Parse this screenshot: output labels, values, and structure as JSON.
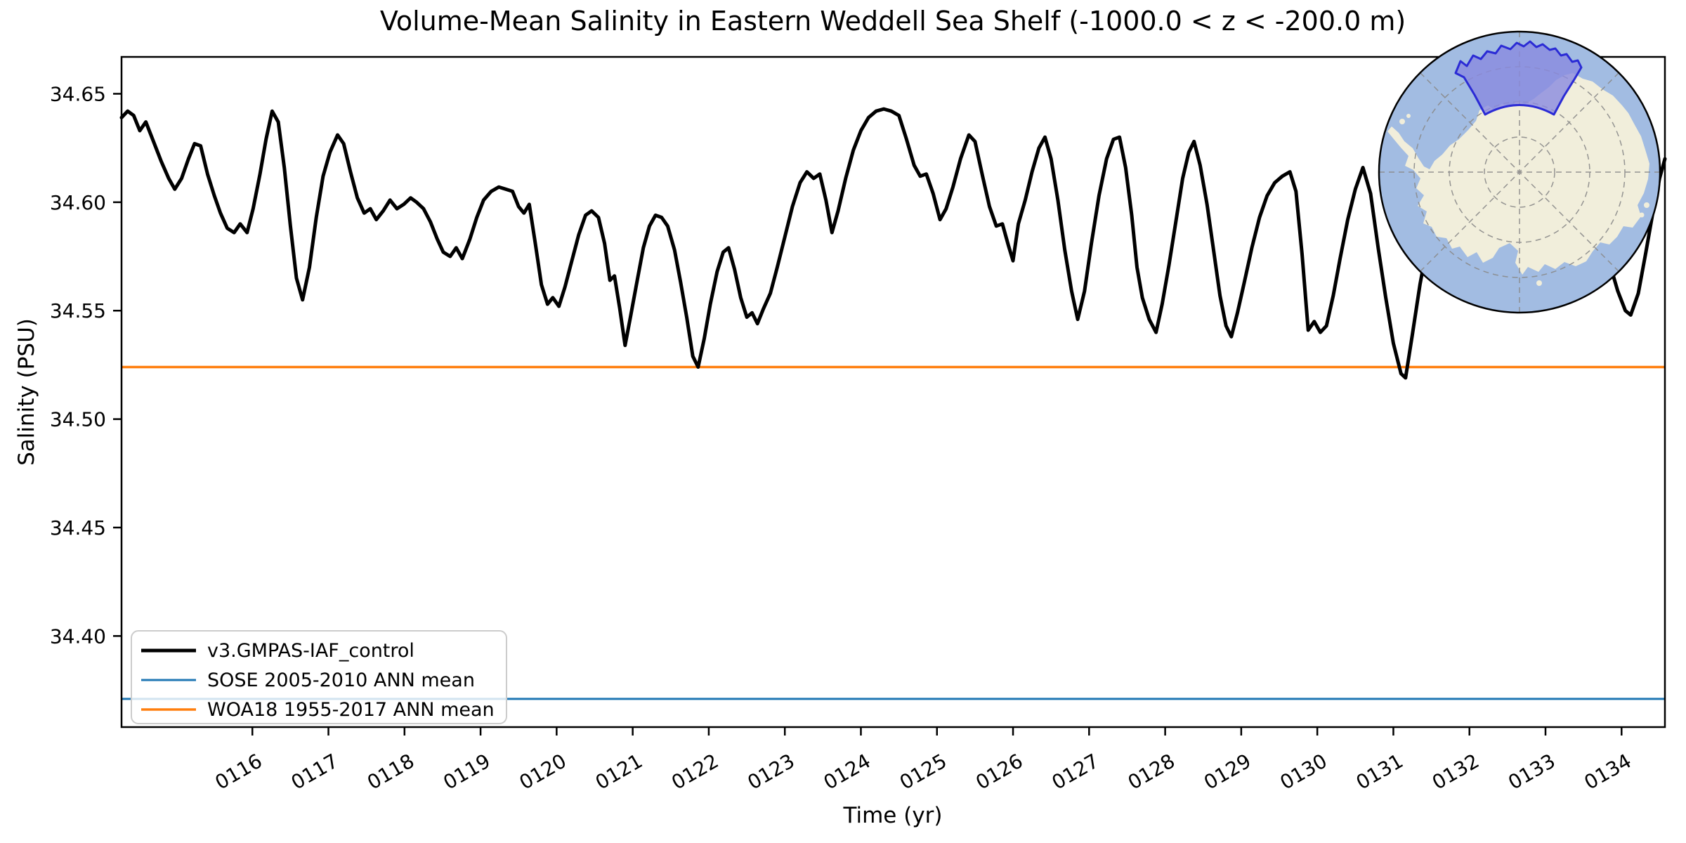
{
  "chart_data": {
    "type": "line",
    "title": "Volume-Mean Salinity in Eastern Weddell Sea Shelf (-1000.0 < z < -200.0 m)",
    "xlabel": "Time (yr)",
    "ylabel": "Salinity (PSU)",
    "xlim": [
      114.28,
      134.57
    ],
    "ylim": [
      34.358,
      34.667
    ],
    "grid": false,
    "legend_position": "lower left",
    "x_ticks": [
      116,
      117,
      118,
      119,
      120,
      121,
      122,
      123,
      124,
      125,
      126,
      127,
      128,
      129,
      130,
      131,
      132,
      133,
      134
    ],
    "x_tick_labels": [
      "0116",
      "0117",
      "0118",
      "0119",
      "0120",
      "0121",
      "0122",
      "0123",
      "0124",
      "0125",
      "0126",
      "0127",
      "0128",
      "0129",
      "0130",
      "0131",
      "0132",
      "0133",
      "0134"
    ],
    "y_ticks": [
      34.65,
      34.6,
      34.55,
      34.5,
      34.45,
      34.4
    ],
    "series": [
      {
        "name": "v3.GMPAS-IAF_control",
        "type": "line",
        "color": "#000000",
        "line_width": 5,
        "points": [
          [
            114.28,
            34.639
          ],
          [
            114.36,
            34.642
          ],
          [
            114.44,
            34.64
          ],
          [
            114.52,
            34.633
          ],
          [
            114.6,
            34.637
          ],
          [
            114.7,
            34.628
          ],
          [
            114.8,
            34.619
          ],
          [
            114.9,
            34.611
          ],
          [
            114.98,
            34.606
          ],
          [
            115.07,
            34.611
          ],
          [
            115.16,
            34.62
          ],
          [
            115.24,
            34.627
          ],
          [
            115.32,
            34.626
          ],
          [
            115.41,
            34.613
          ],
          [
            115.5,
            34.603
          ],
          [
            115.58,
            34.595
          ],
          [
            115.67,
            34.588
          ],
          [
            115.76,
            34.586
          ],
          [
            115.84,
            34.59
          ],
          [
            115.93,
            34.586
          ],
          [
            116.01,
            34.597
          ],
          [
            116.1,
            34.613
          ],
          [
            116.18,
            34.629
          ],
          [
            116.26,
            34.642
          ],
          [
            116.34,
            34.637
          ],
          [
            116.42,
            34.616
          ],
          [
            116.5,
            34.589
          ],
          [
            116.58,
            34.565
          ],
          [
            116.66,
            34.555
          ],
          [
            116.75,
            34.57
          ],
          [
            116.84,
            34.593
          ],
          [
            116.93,
            34.612
          ],
          [
            117.02,
            34.623
          ],
          [
            117.12,
            34.631
          ],
          [
            117.2,
            34.627
          ],
          [
            117.29,
            34.614
          ],
          [
            117.38,
            34.602
          ],
          [
            117.47,
            34.595
          ],
          [
            117.55,
            34.597
          ],
          [
            117.63,
            34.592
          ],
          [
            117.72,
            34.596
          ],
          [
            117.81,
            34.601
          ],
          [
            117.9,
            34.597
          ],
          [
            117.99,
            34.599
          ],
          [
            118.08,
            34.602
          ],
          [
            118.16,
            34.6
          ],
          [
            118.25,
            34.597
          ],
          [
            118.34,
            34.591
          ],
          [
            118.43,
            34.583
          ],
          [
            118.51,
            34.577
          ],
          [
            118.6,
            34.575
          ],
          [
            118.68,
            34.579
          ],
          [
            118.76,
            34.574
          ],
          [
            118.86,
            34.583
          ],
          [
            118.95,
            34.593
          ],
          [
            119.04,
            34.601
          ],
          [
            119.14,
            34.605
          ],
          [
            119.24,
            34.607
          ],
          [
            119.33,
            34.606
          ],
          [
            119.42,
            34.605
          ],
          [
            119.5,
            34.598
          ],
          [
            119.57,
            34.595
          ],
          [
            119.64,
            34.599
          ],
          [
            119.72,
            34.581
          ],
          [
            119.8,
            34.562
          ],
          [
            119.88,
            34.553
          ],
          [
            119.95,
            34.556
          ],
          [
            120.03,
            34.552
          ],
          [
            120.11,
            34.561
          ],
          [
            120.2,
            34.573
          ],
          [
            120.29,
            34.585
          ],
          [
            120.38,
            34.594
          ],
          [
            120.46,
            34.596
          ],
          [
            120.55,
            34.593
          ],
          [
            120.63,
            34.581
          ],
          [
            120.7,
            34.564
          ],
          [
            120.76,
            34.566
          ],
          [
            120.83,
            34.551
          ],
          [
            120.9,
            34.534
          ],
          [
            120.97,
            34.547
          ],
          [
            121.06,
            34.564
          ],
          [
            121.14,
            34.579
          ],
          [
            121.22,
            34.589
          ],
          [
            121.3,
            34.594
          ],
          [
            121.38,
            34.593
          ],
          [
            121.46,
            34.589
          ],
          [
            121.55,
            34.578
          ],
          [
            121.63,
            34.563
          ],
          [
            121.71,
            34.547
          ],
          [
            121.79,
            34.529
          ],
          [
            121.86,
            34.524
          ],
          [
            121.94,
            34.537
          ],
          [
            122.02,
            34.553
          ],
          [
            122.11,
            34.568
          ],
          [
            122.19,
            34.577
          ],
          [
            122.26,
            34.579
          ],
          [
            122.34,
            34.569
          ],
          [
            122.42,
            34.556
          ],
          [
            122.5,
            34.547
          ],
          [
            122.57,
            34.549
          ],
          [
            122.64,
            34.544
          ],
          [
            122.72,
            34.551
          ],
          [
            122.81,
            34.558
          ],
          [
            122.9,
            34.57
          ],
          [
            123.0,
            34.584
          ],
          [
            123.1,
            34.598
          ],
          [
            123.2,
            34.609
          ],
          [
            123.29,
            34.614
          ],
          [
            123.38,
            34.611
          ],
          [
            123.46,
            34.613
          ],
          [
            123.54,
            34.601
          ],
          [
            123.62,
            34.586
          ],
          [
            123.7,
            34.596
          ],
          [
            123.8,
            34.611
          ],
          [
            123.9,
            34.624
          ],
          [
            124.0,
            34.633
          ],
          [
            124.1,
            34.639
          ],
          [
            124.2,
            34.642
          ],
          [
            124.3,
            34.643
          ],
          [
            124.4,
            34.642
          ],
          [
            124.5,
            34.64
          ],
          [
            124.6,
            34.629
          ],
          [
            124.7,
            34.617
          ],
          [
            124.78,
            34.612
          ],
          [
            124.86,
            34.613
          ],
          [
            124.95,
            34.604
          ],
          [
            125.04,
            34.592
          ],
          [
            125.12,
            34.597
          ],
          [
            125.21,
            34.607
          ],
          [
            125.31,
            34.62
          ],
          [
            125.42,
            34.631
          ],
          [
            125.5,
            34.628
          ],
          [
            125.6,
            34.612
          ],
          [
            125.69,
            34.598
          ],
          [
            125.78,
            34.589
          ],
          [
            125.86,
            34.59
          ],
          [
            125.94,
            34.58
          ],
          [
            126.0,
            34.573
          ],
          [
            126.07,
            34.59
          ],
          [
            126.16,
            34.601
          ],
          [
            126.25,
            34.614
          ],
          [
            126.34,
            34.625
          ],
          [
            126.42,
            34.63
          ],
          [
            126.5,
            34.62
          ],
          [
            126.59,
            34.601
          ],
          [
            126.68,
            34.578
          ],
          [
            126.77,
            34.559
          ],
          [
            126.85,
            34.546
          ],
          [
            126.94,
            34.559
          ],
          [
            127.03,
            34.581
          ],
          [
            127.13,
            34.603
          ],
          [
            127.23,
            34.62
          ],
          [
            127.32,
            34.629
          ],
          [
            127.4,
            34.63
          ],
          [
            127.48,
            34.616
          ],
          [
            127.56,
            34.594
          ],
          [
            127.63,
            34.57
          ],
          [
            127.7,
            34.556
          ],
          [
            127.79,
            34.546
          ],
          [
            127.88,
            34.54
          ],
          [
            127.96,
            34.553
          ],
          [
            128.05,
            34.571
          ],
          [
            128.14,
            34.591
          ],
          [
            128.23,
            34.611
          ],
          [
            128.31,
            34.623
          ],
          [
            128.38,
            34.628
          ],
          [
            128.46,
            34.617
          ],
          [
            128.55,
            34.599
          ],
          [
            128.64,
            34.577
          ],
          [
            128.72,
            34.557
          ],
          [
            128.8,
            34.543
          ],
          [
            128.87,
            34.538
          ],
          [
            128.95,
            34.549
          ],
          [
            129.04,
            34.563
          ],
          [
            129.14,
            34.579
          ],
          [
            129.24,
            34.593
          ],
          [
            129.34,
            34.603
          ],
          [
            129.44,
            34.609
          ],
          [
            129.54,
            34.612
          ],
          [
            129.64,
            34.614
          ],
          [
            129.72,
            34.605
          ],
          [
            129.8,
            34.576
          ],
          [
            129.88,
            34.541
          ],
          [
            129.96,
            34.545
          ],
          [
            130.04,
            34.54
          ],
          [
            130.12,
            34.543
          ],
          [
            130.21,
            34.557
          ],
          [
            130.3,
            34.574
          ],
          [
            130.4,
            34.592
          ],
          [
            130.5,
            34.606
          ],
          [
            130.6,
            34.616
          ],
          [
            130.7,
            34.604
          ],
          [
            130.8,
            34.579
          ],
          [
            130.9,
            34.556
          ],
          [
            131.0,
            34.535
          ],
          [
            131.1,
            34.521
          ],
          [
            131.16,
            34.519
          ],
          [
            131.25,
            34.539
          ],
          [
            131.35,
            34.562
          ],
          [
            131.45,
            34.581
          ],
          [
            131.55,
            34.597
          ],
          [
            131.65,
            34.608
          ],
          [
            131.75,
            34.601
          ],
          [
            131.85,
            34.586
          ],
          [
            131.95,
            34.571
          ],
          [
            132.05,
            34.561
          ],
          [
            132.15,
            34.557
          ],
          [
            132.25,
            34.563
          ],
          [
            132.35,
            34.576
          ],
          [
            132.45,
            34.59
          ],
          [
            132.55,
            34.602
          ],
          [
            132.65,
            34.607
          ],
          [
            132.75,
            34.6
          ],
          [
            132.85,
            34.587
          ],
          [
            132.95,
            34.573
          ],
          [
            133.05,
            34.563
          ],
          [
            133.15,
            34.559
          ],
          [
            133.25,
            34.565
          ],
          [
            133.35,
            34.579
          ],
          [
            133.45,
            34.592
          ],
          [
            133.55,
            34.601
          ],
          [
            133.65,
            34.594
          ],
          [
            133.75,
            34.583
          ],
          [
            133.85,
            34.571
          ],
          [
            133.95,
            34.559
          ],
          [
            134.05,
            34.55
          ],
          [
            134.12,
            34.548
          ],
          [
            134.22,
            34.558
          ],
          [
            134.32,
            34.577
          ],
          [
            134.42,
            34.597
          ],
          [
            134.5,
            34.611
          ],
          [
            134.57,
            34.62
          ]
        ]
      },
      {
        "name": "SOSE 2005-2010 ANN mean",
        "type": "hline",
        "color": "#1f77b4",
        "line_width": 3,
        "value": 34.371
      },
      {
        "name": "WOA18 1955-2017 ANN mean",
        "type": "hline",
        "color": "#ff7f0e",
        "line_width": 3.5,
        "value": 34.524
      }
    ]
  },
  "inset_map": {
    "highlighted_region": "Eastern Weddell Sea Shelf",
    "ocean_color": "#a2bce2",
    "land_color": "#f1eedb",
    "region_fill": "#8a8ae0",
    "region_border": "#2b2bd5",
    "graticule_color": "#8a8a8a",
    "boundary_color": "#000000"
  }
}
